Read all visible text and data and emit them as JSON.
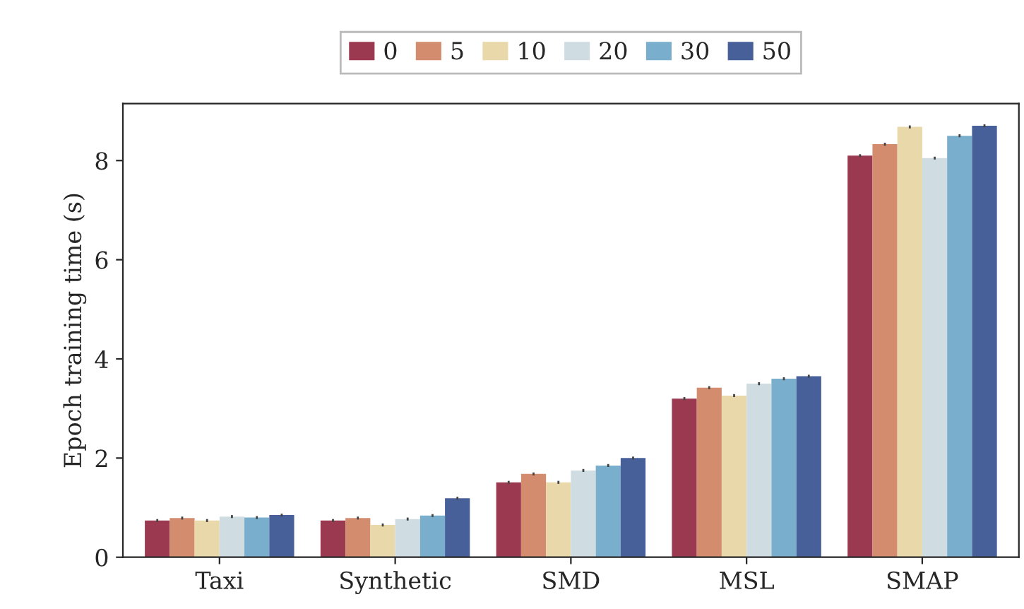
{
  "chart_data": {
    "type": "bar",
    "ylabel": "Epoch training time (s)",
    "categories": [
      "Taxi",
      "Synthetic",
      "SMD",
      "MSL",
      "SMAP"
    ],
    "series": [
      {
        "name": "0",
        "color": "#9b3950",
        "values": [
          0.74,
          0.74,
          1.51,
          3.2,
          8.1
        ],
        "errors": [
          0.03,
          0.03,
          0.03,
          0.03,
          0.03
        ]
      },
      {
        "name": "5",
        "color": "#d48c6f",
        "values": [
          0.79,
          0.79,
          1.68,
          3.42,
          8.33
        ],
        "errors": [
          0.03,
          0.03,
          0.03,
          0.03,
          0.03
        ]
      },
      {
        "name": "10",
        "color": "#e9d8aa",
        "values": [
          0.74,
          0.65,
          1.51,
          3.26,
          8.68
        ],
        "errors": [
          0.03,
          0.03,
          0.03,
          0.03,
          0.03
        ]
      },
      {
        "name": "20",
        "color": "#cfdde3",
        "values": [
          0.82,
          0.77,
          1.75,
          3.5,
          8.05
        ],
        "errors": [
          0.03,
          0.03,
          0.03,
          0.03,
          0.03
        ]
      },
      {
        "name": "30",
        "color": "#79aecd",
        "values": [
          0.8,
          0.84,
          1.85,
          3.6,
          8.5
        ],
        "errors": [
          0.03,
          0.03,
          0.03,
          0.03,
          0.03
        ]
      },
      {
        "name": "50",
        "color": "#47609a",
        "values": [
          0.85,
          1.19,
          2.0,
          3.65,
          8.7
        ],
        "errors": [
          0.03,
          0.03,
          0.03,
          0.03,
          0.03
        ]
      }
    ],
    "ylim": [
      0,
      9.15
    ],
    "yticks": [
      0,
      2,
      4,
      6,
      8
    ],
    "grid": false,
    "legend": "top"
  }
}
